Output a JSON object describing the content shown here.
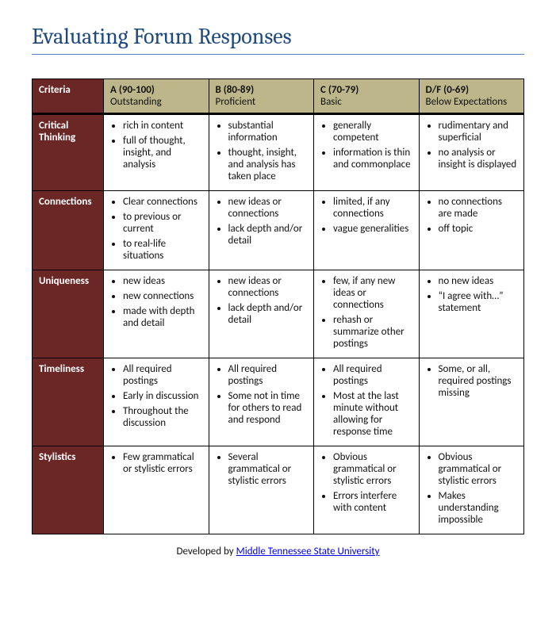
{
  "title": "Evaluating Forum Responses",
  "columns": {
    "criteria": "Criteria",
    "a": {
      "grade": "A (90-100)",
      "label": "Outstanding"
    },
    "b": {
      "grade": "B (80-89)",
      "label": "Proficient"
    },
    "c": {
      "grade": "C (70-79)",
      "label": "Basic"
    },
    "d": {
      "grade": "D/F (0-69)",
      "label": "Below Expectations"
    }
  },
  "rows": [
    {
      "name": "Critical Thinking",
      "a": [
        "rich in content",
        "full of thought, insight, and analysis"
      ],
      "b": [
        "substantial information",
        "thought, insight, and analysis has taken place"
      ],
      "c": [
        "generally competent",
        "information is thin and commonplace"
      ],
      "d": [
        "rudimentary and superficial",
        "no analysis or insight is displayed"
      ]
    },
    {
      "name": "Connections",
      "a": [
        "Clear connections",
        "to previous or current",
        "to real-life situations"
      ],
      "b": [
        "new ideas or connections",
        "lack depth and/or detail"
      ],
      "c": [
        "limited, if any connections",
        "vague generalities"
      ],
      "d": [
        "no connections are made",
        "off topic"
      ]
    },
    {
      "name": "Uniqueness",
      "a": [
        "new ideas",
        "new connections",
        "made with depth and detail"
      ],
      "b": [
        "new ideas or connections",
        "lack depth and/or detail"
      ],
      "c": [
        "few, if any new ideas or connections",
        "rehash or summarize other postings"
      ],
      "d": [
        "no new ideas",
        "“I agree with…” statement"
      ]
    },
    {
      "name": "Timeliness",
      "a": [
        "All required postings",
        "Early in discussion",
        "Throughout the discussion"
      ],
      "b": [
        "All required postings",
        "Some not in time for others to read and respond"
      ],
      "c": [
        "All required postings",
        "Most at the last minute without allowing for response time"
      ],
      "d": [
        "Some, or all, required postings missing"
      ]
    },
    {
      "name": "Stylistics",
      "a": [
        "Few grammatical or stylistic errors"
      ],
      "b": [
        "Several grammatical or stylistic errors"
      ],
      "c": [
        "Obvious grammatical or stylistic errors",
        "Errors interfere with content"
      ],
      "d": [
        "Obvious grammatical or stylistic errors",
        "Makes understanding impossible"
      ]
    }
  ],
  "footer": {
    "prefix": "Developed by ",
    "link_text": "Middle Tennessee State University"
  },
  "style": {
    "title_color": "#1f497d",
    "title_rule_color": "#4f81bd",
    "criteria_bg": "#6b2626",
    "criteria_fg": "#ffffff",
    "grade_head_bg": "#bdb68a",
    "grade_head_fg": "#111111",
    "cell_bg": "#ffffff",
    "cell_fg": "#111111",
    "border_color": "#000000",
    "link_color": "#0000ee",
    "title_fontsize": 28,
    "body_fontsize": 13
  }
}
